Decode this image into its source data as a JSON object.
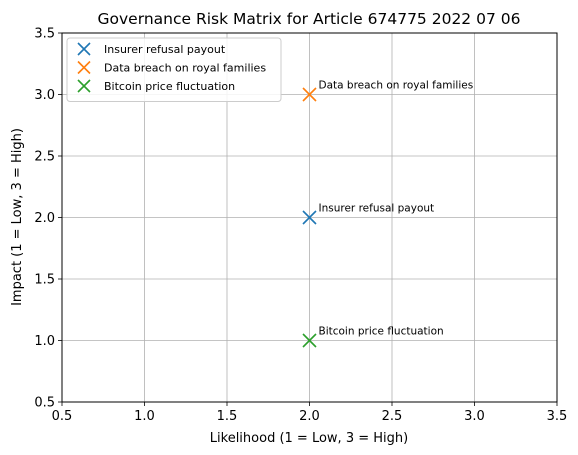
{
  "chart_data": {
    "type": "scatter",
    "title": "Governance Risk Matrix for Article 674775 2022 07 06",
    "xlabel": "Likelihood (1 = Low, 3 = High)",
    "ylabel": "Impact (1 = Low, 3 = High)",
    "xlim": [
      0.5,
      3.5
    ],
    "ylim": [
      0.5,
      3.5
    ],
    "xticks": [
      "0.5",
      "1.0",
      "1.5",
      "2.0",
      "2.5",
      "3.0",
      "3.5"
    ],
    "yticks": [
      "0.5",
      "1.0",
      "1.5",
      "2.0",
      "2.5",
      "3.0",
      "3.5"
    ],
    "grid": true,
    "legend_position": "top-left",
    "marker": "x",
    "series": [
      {
        "name": "Insurer refusal payout",
        "x": 2,
        "y": 2,
        "color": "#1f77b4",
        "annotation": "Insurer refusal payout"
      },
      {
        "name": "Data breach on royal families",
        "x": 2,
        "y": 3,
        "color": "#ff7f0e",
        "annotation": "Data breach on royal families"
      },
      {
        "name": "Bitcoin price fluctuation",
        "x": 2,
        "y": 1,
        "color": "#2ca02c",
        "annotation": "Bitcoin price fluctuation"
      }
    ]
  }
}
